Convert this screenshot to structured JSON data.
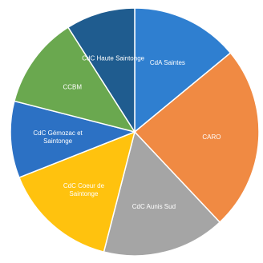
{
  "chart_data": {
    "type": "pie",
    "categories": [
      "CdA Saintes",
      "CARO",
      "CdC Aunis Sud",
      "CdC Coeur de Saintonge",
      "CdC Gémozac et Saintonge",
      "CCBM",
      "CdC Haute Saintonge"
    ],
    "values": [
      14,
      24,
      16,
      15,
      10,
      12,
      9
    ],
    "colors": [
      "#2f7fd0",
      "#f08a43",
      "#a5a5a5",
      "#ffc20e",
      "#2c71c4",
      "#6aa84f",
      "#1f5c8f"
    ],
    "start_angle_deg": 0,
    "direction": "clockwise",
    "labels": [
      "CdA Saintes",
      "CARO",
      "CdC Aunis Sud",
      "CdC Coeur de\nSaintonge",
      "CdC Gémozac et\nSaintonge",
      "CCBM",
      "CdC Haute Saintonge"
    ]
  }
}
